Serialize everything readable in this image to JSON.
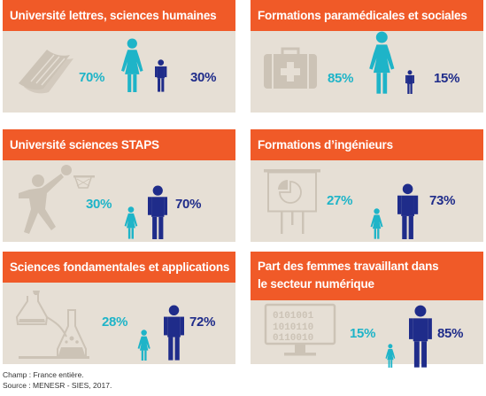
{
  "colors": {
    "header": "#f05a28",
    "panel": "#e6dfd5",
    "women": "#1eb4c8",
    "men": "#1f2c8a"
  },
  "panels": [
    {
      "title_lines": [
        "Université lettres, sciences humaines"
      ],
      "icon": "book-icon",
      "women_pct": "70%",
      "men_pct": "30%",
      "women_share": 0.7,
      "men_share": 0.3
    },
    {
      "title_lines": [
        "Formations paramédicales et sociales"
      ],
      "icon": "first-aid-kit-icon",
      "women_pct": "85%",
      "men_pct": "15%",
      "women_share": 0.85,
      "men_share": 0.15
    },
    {
      "title_lines": [
        "Université sciences STAPS"
      ],
      "icon": "basketball-player-icon",
      "women_pct": "30%",
      "men_pct": "70%",
      "women_share": 0.3,
      "men_share": 0.7
    },
    {
      "title_lines": [
        "Formations d’ingénieurs"
      ],
      "icon": "presentation-board-icon",
      "women_pct": "27%",
      "men_pct": "73%",
      "women_share": 0.27,
      "men_share": 0.73
    },
    {
      "title_lines": [
        "Sciences fondamentales et applications"
      ],
      "icon": "lab-flasks-icon",
      "women_pct": "28%",
      "men_pct": "72%",
      "women_share": 0.28,
      "men_share": 0.72
    },
    {
      "title_lines": [
        "Part des femmes travaillant dans",
        "le secteur numérique"
      ],
      "icon": "binary-monitor-icon",
      "women_pct": "15%",
      "men_pct": "85%",
      "women_share": 0.15,
      "men_share": 0.85
    }
  ],
  "footer": {
    "scope": "Champ : France entière.",
    "source": "Source : MENESR - SIES, 2017."
  }
}
